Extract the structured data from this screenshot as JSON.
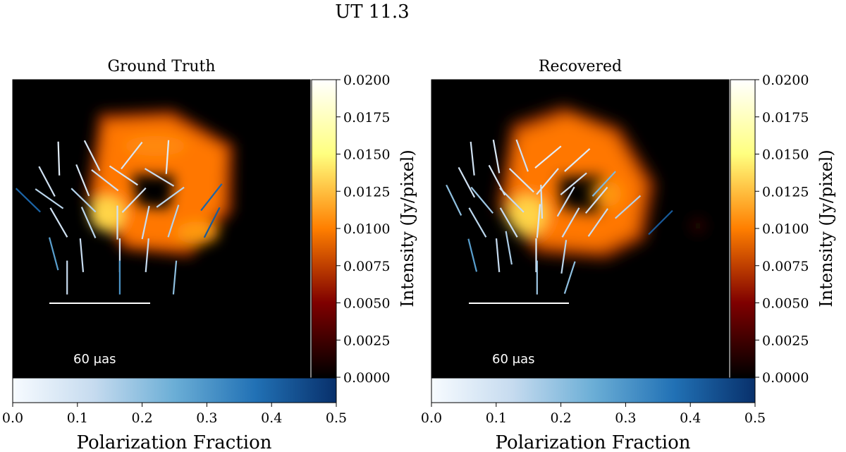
{
  "figure_title": "UT 11.3",
  "colors": {
    "background": "#ffffff",
    "image_black": "#000000",
    "annotation": "#ffffff"
  },
  "chart_data": [
    {
      "type": "heatmap",
      "panel": "left",
      "title": "Ground Truth",
      "colormap": "afmhot",
      "intensity_colorbar": {
        "label": "Intensity (Jy/pixel)",
        "range": [
          0.0,
          0.02
        ],
        "ticks": [
          "0.0000",
          "0.0025",
          "0.0050",
          "0.0075",
          "0.0100",
          "0.0125",
          "0.0150",
          "0.0175",
          "0.0200"
        ]
      },
      "polarization_colorbar": {
        "label": "Polarization Fraction",
        "colormap": "Blues",
        "range": [
          0.0,
          0.5
        ],
        "ticks": [
          "0.0",
          "0.1",
          "0.2",
          "0.3",
          "0.4",
          "0.5"
        ]
      },
      "scale_bar_label": "60 μas",
      "evpa_ticks": [
        {
          "pos": [
            0.155,
            0.265
          ],
          "angle_deg": 88,
          "frac": 0.05
        },
        {
          "pos": [
            0.267,
            0.255
          ],
          "angle_deg": 63,
          "frac": 0.08
        },
        {
          "pos": [
            0.4,
            0.255
          ],
          "angle_deg": 128,
          "frac": 0.08
        },
        {
          "pos": [
            0.52,
            0.26
          ],
          "angle_deg": 94,
          "frac": 0.06
        },
        {
          "pos": [
            0.115,
            0.342
          ],
          "angle_deg": 62,
          "frac": 0.1
        },
        {
          "pos": [
            0.235,
            0.338
          ],
          "angle_deg": 68,
          "frac": 0.08
        },
        {
          "pos": [
            0.31,
            0.338
          ],
          "angle_deg": 38,
          "frac": 0.1
        },
        {
          "pos": [
            0.373,
            0.322
          ],
          "angle_deg": 34,
          "frac": 0.08
        },
        {
          "pos": [
            0.493,
            0.328
          ],
          "angle_deg": 31,
          "frac": 0.12
        },
        {
          "pos": [
            0.052,
            0.405
          ],
          "angle_deg": 44,
          "frac": 0.4
        },
        {
          "pos": [
            0.123,
            0.4
          ],
          "angle_deg": 35,
          "frac": 0.14
        },
        {
          "pos": [
            0.238,
            0.405
          ],
          "angle_deg": 44,
          "frac": 0.15
        },
        {
          "pos": [
            0.408,
            0.405
          ],
          "angle_deg": 134,
          "frac": 0.1
        },
        {
          "pos": [
            0.53,
            0.395
          ],
          "angle_deg": 144,
          "frac": 0.14
        },
        {
          "pos": [
            0.668,
            0.395
          ],
          "angle_deg": 128,
          "frac": 0.4
        },
        {
          "pos": [
            0.155,
            0.48
          ],
          "angle_deg": 60,
          "frac": 0.1
        },
        {
          "pos": [
            0.255,
            0.48
          ],
          "angle_deg": 66,
          "frac": 0.14
        },
        {
          "pos": [
            0.352,
            0.48
          ],
          "angle_deg": 90,
          "frac": 0.1
        },
        {
          "pos": [
            0.447,
            0.48
          ],
          "angle_deg": 102,
          "frac": 0.12
        },
        {
          "pos": [
            0.54,
            0.475
          ],
          "angle_deg": 108,
          "frac": 0.15
        },
        {
          "pos": [
            0.67,
            0.48
          ],
          "angle_deg": 117,
          "frac": 0.42
        },
        {
          "pos": [
            0.138,
            0.585
          ],
          "angle_deg": 75,
          "frac": 0.28
        },
        {
          "pos": [
            0.232,
            0.59
          ],
          "angle_deg": 85,
          "frac": 0.12
        },
        {
          "pos": [
            0.36,
            0.59
          ],
          "angle_deg": 90,
          "frac": 0.1
        },
        {
          "pos": [
            0.452,
            0.59
          ],
          "angle_deg": 95,
          "frac": 0.12
        },
        {
          "pos": [
            0.183,
            0.665
          ],
          "angle_deg": 90,
          "frac": 0.12
        },
        {
          "pos": [
            0.36,
            0.665
          ],
          "angle_deg": 90,
          "frac": 0.3
        },
        {
          "pos": [
            0.545,
            0.665
          ],
          "angle_deg": 95,
          "frac": 0.2
        }
      ]
    },
    {
      "type": "heatmap",
      "panel": "right",
      "title": "Recovered",
      "colormap": "afmhot",
      "intensity_colorbar": {
        "label": "Intensity (Jy/pixel)",
        "range": [
          0.0,
          0.02
        ],
        "ticks": [
          "0.0000",
          "0.0025",
          "0.0050",
          "0.0075",
          "0.0100",
          "0.0125",
          "0.0150",
          "0.0175",
          "0.0200"
        ]
      },
      "polarization_colorbar": {
        "label": "Polarization Fraction",
        "colormap": "Blues",
        "range": [
          0.0,
          0.5
        ],
        "ticks": [
          "0.0",
          "0.1",
          "0.2",
          "0.3",
          "0.4",
          "0.5"
        ]
      },
      "scale_bar_label": "60 μas",
      "evpa_ticks": [
        {
          "pos": [
            0.138,
            0.265
          ],
          "angle_deg": 84,
          "frac": 0.1
        },
        {
          "pos": [
            0.218,
            0.258
          ],
          "angle_deg": 80,
          "frac": 0.08
        },
        {
          "pos": [
            0.305,
            0.255
          ],
          "angle_deg": 70,
          "frac": 0.1
        },
        {
          "pos": [
            0.392,
            0.26
          ],
          "angle_deg": 140,
          "frac": 0.05
        },
        {
          "pos": [
            0.49,
            0.27
          ],
          "angle_deg": 138,
          "frac": 0.06
        },
        {
          "pos": [
            0.118,
            0.345
          ],
          "angle_deg": 62,
          "frac": 0.1
        },
        {
          "pos": [
            0.22,
            0.338
          ],
          "angle_deg": 62,
          "frac": 0.08
        },
        {
          "pos": [
            0.303,
            0.338
          ],
          "angle_deg": 44,
          "frac": 0.08
        },
        {
          "pos": [
            0.39,
            0.342
          ],
          "angle_deg": 130,
          "frac": 0.08
        },
        {
          "pos": [
            0.478,
            0.35
          ],
          "angle_deg": 140,
          "frac": 0.1
        },
        {
          "pos": [
            0.58,
            0.35
          ],
          "angle_deg": 133,
          "frac": 0.22
        },
        {
          "pos": [
            0.075,
            0.405
          ],
          "angle_deg": 64,
          "frac": 0.2
        },
        {
          "pos": [
            0.17,
            0.405
          ],
          "angle_deg": 50,
          "frac": 0.18
        },
        {
          "pos": [
            0.27,
            0.405
          ],
          "angle_deg": 45,
          "frac": 0.12
        },
        {
          "pos": [
            0.37,
            0.41
          ],
          "angle_deg": 88,
          "frac": 0.1
        },
        {
          "pos": [
            0.452,
            0.41
          ],
          "angle_deg": 120,
          "frac": 0.12
        },
        {
          "pos": [
            0.555,
            0.405
          ],
          "angle_deg": 130,
          "frac": 0.1
        },
        {
          "pos": [
            0.66,
            0.428
          ],
          "angle_deg": 138,
          "frac": 0.15
        },
        {
          "pos": [
            0.155,
            0.48
          ],
          "angle_deg": 60,
          "frac": 0.14
        },
        {
          "pos": [
            0.26,
            0.48
          ],
          "angle_deg": 60,
          "frac": 0.12
        },
        {
          "pos": [
            0.36,
            0.475
          ],
          "angle_deg": 95,
          "frac": 0.08
        },
        {
          "pos": [
            0.468,
            0.48
          ],
          "angle_deg": 120,
          "frac": 0.12
        },
        {
          "pos": [
            0.56,
            0.48
          ],
          "angle_deg": 125,
          "frac": 0.12
        },
        {
          "pos": [
            0.77,
            0.48
          ],
          "angle_deg": 135,
          "frac": 0.42
        },
        {
          "pos": [
            0.26,
            0.565
          ],
          "angle_deg": 80,
          "frac": 0.16
        },
        {
          "pos": [
            0.352,
            0.59
          ],
          "angle_deg": 90,
          "frac": 0.06
        },
        {
          "pos": [
            0.445,
            0.595
          ],
          "angle_deg": 98,
          "frac": 0.14
        },
        {
          "pos": [
            0.138,
            0.59
          ],
          "angle_deg": 76,
          "frac": 0.28
        },
        {
          "pos": [
            0.223,
            0.59
          ],
          "angle_deg": 85,
          "frac": 0.12
        },
        {
          "pos": [
            0.355,
            0.665
          ],
          "angle_deg": 90,
          "frac": 0.18
        },
        {
          "pos": [
            0.465,
            0.665
          ],
          "angle_deg": 108,
          "frac": 0.2
        }
      ]
    }
  ]
}
